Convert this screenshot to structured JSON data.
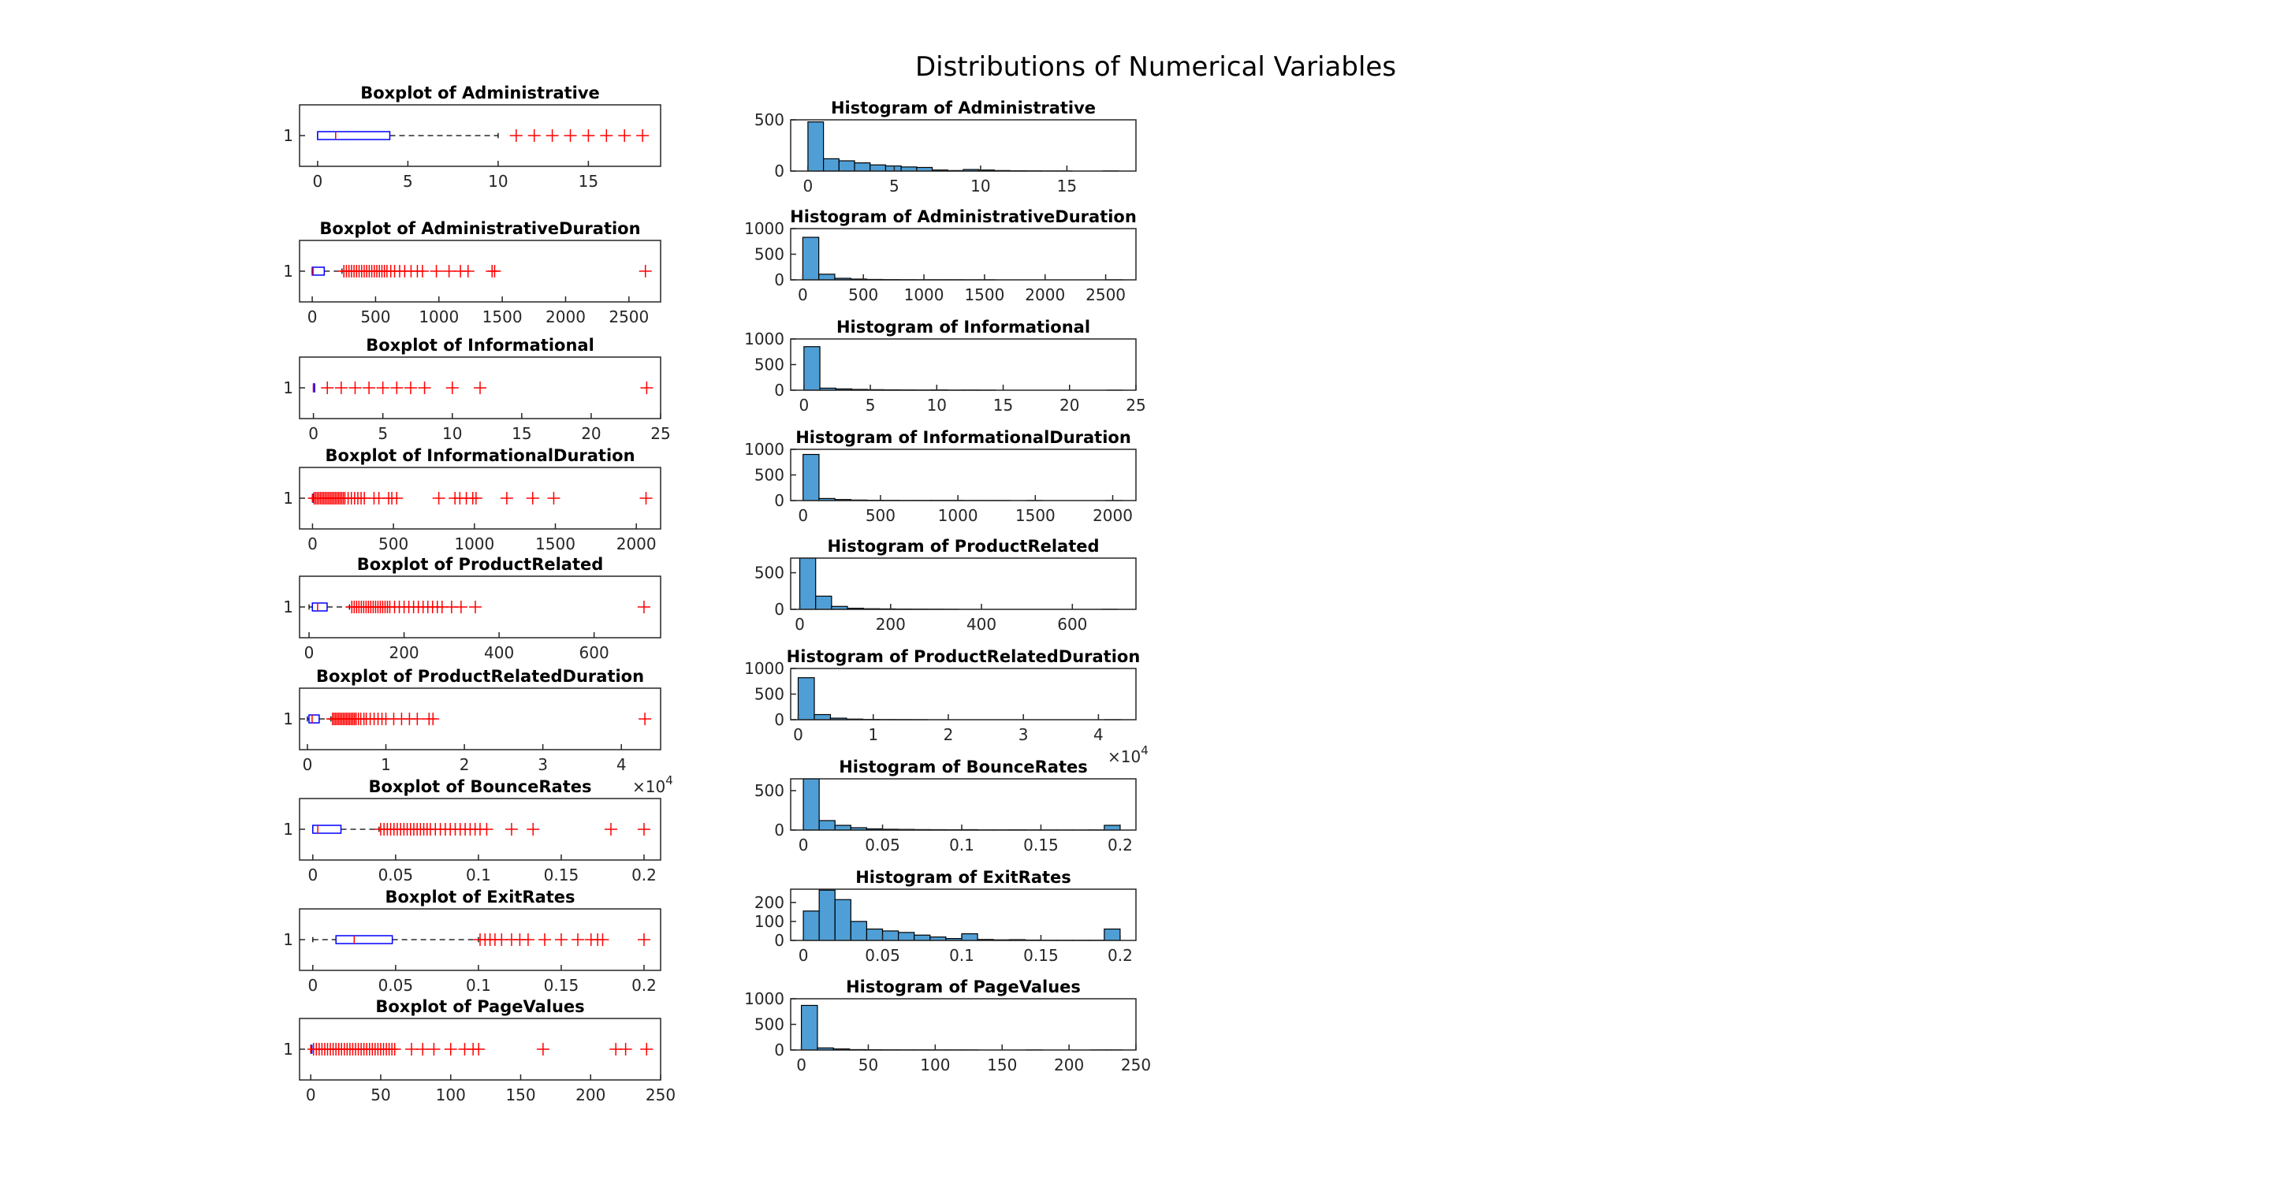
{
  "figure_title": "Distributions of Numerical Variables",
  "colors": {
    "box": "#0000ff",
    "outlier": "#ff0000",
    "hist_fill": "#4f9fd6",
    "hist_edge": "#000000",
    "axis": "#262626"
  },
  "chart_data": [
    {
      "type": "boxplot",
      "title": "Boxplot of Administrative",
      "ytick": "1",
      "xlim": [
        -1,
        19
      ],
      "xticks": [
        0,
        5,
        10,
        15
      ],
      "q1": 0,
      "median": 1,
      "q3": 4,
      "whisker_low": 0,
      "whisker_high": 10,
      "outliers": [
        11,
        12,
        13,
        14,
        15,
        16,
        17,
        18
      ]
    },
    {
      "type": "histogram",
      "title": "Histogram of Administrative",
      "xlim": [
        -1,
        19
      ],
      "ylim": [
        0,
        500
      ],
      "xticks": [
        0,
        5,
        10,
        15
      ],
      "yticks": [
        0,
        500
      ],
      "bin_edges": [
        0,
        0.9,
        1.8,
        2.7,
        3.6,
        4.5,
        5.4,
        6.3,
        7.2,
        8.1,
        9.0,
        9.9,
        10.8,
        11.7,
        12.6,
        13.5,
        14.4,
        15.3,
        16.2,
        17.1,
        18.0
      ],
      "counts": [
        480,
        120,
        100,
        80,
        60,
        50,
        40,
        35,
        10,
        5,
        15,
        10,
        5,
        3,
        2,
        1,
        1,
        0,
        0,
        1
      ]
    },
    {
      "type": "boxplot",
      "title": "Boxplot of AdministrativeDuration",
      "ytick": "1",
      "xlim": [
        -100,
        2750
      ],
      "xticks": [
        0,
        500,
        1000,
        1500,
        2000,
        2500
      ],
      "q1": 0,
      "median": 7,
      "q3": 95,
      "whisker_low": 0,
      "whisker_high": 235,
      "outliers": [
        250,
        270,
        290,
        310,
        330,
        350,
        370,
        390,
        410,
        430,
        450,
        470,
        490,
        510,
        530,
        550,
        570,
        590,
        620,
        650,
        690,
        730,
        780,
        830,
        870,
        980,
        1080,
        1170,
        1230,
        1420,
        1440,
        2630
      ]
    },
    {
      "type": "histogram",
      "title": "Histogram of AdministrativeDuration",
      "xlim": [
        -100,
        2750
      ],
      "ylim": [
        0,
        1000
      ],
      "xticks": [
        0,
        500,
        1000,
        1500,
        2000,
        2500
      ],
      "yticks": [
        0,
        500,
        1000
      ],
      "bin_edges": [
        0,
        132,
        264,
        396,
        528,
        660,
        792,
        924,
        1056,
        1188,
        1320,
        1452,
        1584,
        1716,
        1848,
        1980,
        2112,
        2244,
        2376,
        2508,
        2640
      ],
      "counts": [
        830,
        110,
        30,
        15,
        8,
        5,
        3,
        2,
        2,
        2,
        1,
        1,
        0,
        0,
        0,
        0,
        0,
        0,
        0,
        1
      ]
    },
    {
      "type": "boxplot",
      "title": "Boxplot of Informational",
      "ytick": "1",
      "xlim": [
        -1,
        25
      ],
      "xticks": [
        0,
        5,
        10,
        15,
        20,
        25
      ],
      "q1": 0,
      "median": 0,
      "q3": 0,
      "whisker_low": 0,
      "whisker_high": 0,
      "outliers": [
        1,
        2,
        3,
        4,
        5,
        6,
        7,
        8,
        10,
        12,
        24
      ]
    },
    {
      "type": "histogram",
      "title": "Histogram of Informational",
      "xlim": [
        -1,
        25
      ],
      "ylim": [
        0,
        1000
      ],
      "xticks": [
        0,
        5,
        10,
        15,
        20,
        25
      ],
      "yticks": [
        0,
        500,
        1000
      ],
      "bin_edges": [
        0,
        1.2,
        2.4,
        3.6,
        4.8,
        6.0,
        7.2,
        8.4,
        9.6,
        10.8,
        12.0,
        13.2,
        14.4,
        15.6,
        16.8,
        18.0,
        19.2,
        20.4,
        21.6,
        22.8,
        24.0
      ],
      "counts": [
        850,
        40,
        25,
        15,
        10,
        8,
        6,
        4,
        6,
        2,
        3,
        2,
        0,
        0,
        0,
        0,
        0,
        0,
        0,
        1
      ]
    },
    {
      "type": "boxplot",
      "title": "Boxplot of InformationalDuration",
      "ytick": "1",
      "xlim": [
        -80,
        2150
      ],
      "xticks": [
        0,
        500,
        1000,
        1500,
        2000
      ],
      "q1": 0,
      "median": 0,
      "q3": 0,
      "whisker_low": 0,
      "whisker_high": 0,
      "outliers": [
        10,
        20,
        30,
        40,
        50,
        60,
        70,
        80,
        90,
        100,
        110,
        120,
        130,
        140,
        150,
        160,
        170,
        180,
        190,
        200,
        220,
        240,
        260,
        280,
        300,
        320,
        380,
        410,
        470,
        490,
        520,
        780,
        880,
        910,
        950,
        990,
        1010,
        1200,
        1360,
        1490,
        2060
      ]
    },
    {
      "type": "histogram",
      "title": "Histogram of InformationalDuration",
      "xlim": [
        -80,
        2150
      ],
      "ylim": [
        0,
        1000
      ],
      "xticks": [
        0,
        500,
        1000,
        1500,
        2000
      ],
      "yticks": [
        0,
        500,
        1000
      ],
      "bin_edges": [
        0,
        103,
        206,
        309,
        412,
        515,
        618,
        721,
        824,
        927,
        1030,
        1133,
        1236,
        1339,
        1442,
        1545,
        1648,
        1751,
        1854,
        1957,
        2060
      ],
      "counts": [
        900,
        40,
        20,
        10,
        6,
        4,
        2,
        2,
        3,
        3,
        1,
        1,
        1,
        0,
        1,
        0,
        0,
        0,
        0,
        1
      ]
    },
    {
      "type": "boxplot",
      "title": "Boxplot of ProductRelated",
      "ytick": "1",
      "xlim": [
        -20,
        740
      ],
      "xticks": [
        0,
        200,
        400,
        600
      ],
      "q1": 7,
      "median": 18,
      "q3": 38,
      "whisker_low": 0,
      "whisker_high": 85,
      "outliers": [
        90,
        95,
        100,
        105,
        110,
        115,
        120,
        125,
        130,
        135,
        140,
        145,
        150,
        155,
        160,
        165,
        170,
        180,
        190,
        200,
        210,
        220,
        230,
        240,
        250,
        260,
        270,
        280,
        300,
        320,
        350,
        705
      ]
    },
    {
      "type": "histogram",
      "title": "Histogram of ProductRelated",
      "xlim": [
        -20,
        740
      ],
      "ylim": [
        0,
        700
      ],
      "xticks": [
        0,
        200,
        400,
        600
      ],
      "yticks": [
        0,
        500
      ],
      "bin_edges": [
        0,
        35,
        70,
        105,
        140,
        175,
        210,
        245,
        280,
        315,
        350,
        385,
        420,
        455,
        490,
        525,
        560,
        595,
        630,
        665,
        700
      ],
      "counts": [
        700,
        180,
        40,
        15,
        8,
        6,
        4,
        3,
        2,
        1,
        0,
        0,
        0,
        0,
        0,
        0,
        0,
        0,
        0,
        1
      ]
    },
    {
      "type": "boxplot",
      "title": "Boxplot of ProductRelatedDuration",
      "ytick": "1",
      "xexponent": "4",
      "xlim": [
        -0.1,
        4.5
      ],
      "xticks": [
        0,
        1,
        2,
        3,
        4
      ],
      "q1": 0.02,
      "median": 0.06,
      "q3": 0.15,
      "whisker_low": 0,
      "whisker_high": 0.3,
      "outliers": [
        0.32,
        0.34,
        0.36,
        0.38,
        0.4,
        0.42,
        0.44,
        0.46,
        0.48,
        0.5,
        0.52,
        0.54,
        0.56,
        0.58,
        0.6,
        0.62,
        0.65,
        0.68,
        0.72,
        0.75,
        0.8,
        0.85,
        0.9,
        0.95,
        1.0,
        1.1,
        1.2,
        1.3,
        1.4,
        1.55,
        1.6,
        4.3
      ]
    },
    {
      "type": "histogram",
      "title": "Histogram of ProductRelatedDuration",
      "xexponent": "4",
      "xlim": [
        -0.1,
        4.5
      ],
      "ylim": [
        0,
        1000
      ],
      "xticks": [
        0,
        1,
        2,
        3,
        4
      ],
      "yticks": [
        0,
        500,
        1000
      ],
      "bin_edges": [
        0,
        0.215,
        0.43,
        0.645,
        0.86,
        1.075,
        1.29,
        1.505,
        1.72,
        1.935,
        2.15,
        2.365,
        2.58,
        2.795,
        3.01,
        3.225,
        3.44,
        3.655,
        3.87,
        4.085,
        4.3
      ],
      "counts": [
        820,
        100,
        30,
        12,
        5,
        3,
        2,
        1,
        0,
        0,
        0,
        0,
        0,
        0,
        0,
        0,
        0,
        0,
        0,
        1
      ]
    },
    {
      "type": "boxplot",
      "title": "Boxplot of BounceRates",
      "ytick": "1",
      "xlim": [
        -0.008,
        0.21
      ],
      "xticks": [
        0,
        0.05,
        0.1,
        0.15,
        0.2
      ],
      "q1": 0,
      "median": 0.003,
      "q3": 0.017,
      "whisker_low": 0,
      "whisker_high": 0.04,
      "outliers": [
        0.041,
        0.043,
        0.045,
        0.047,
        0.049,
        0.051,
        0.053,
        0.055,
        0.057,
        0.059,
        0.061,
        0.063,
        0.065,
        0.067,
        0.069,
        0.071,
        0.074,
        0.077,
        0.08,
        0.083,
        0.086,
        0.089,
        0.092,
        0.095,
        0.098,
        0.101,
        0.105,
        0.12,
        0.133,
        0.18,
        0.2
      ]
    },
    {
      "type": "histogram",
      "title": "Histogram of BounceRates",
      "xlim": [
        -0.008,
        0.21
      ],
      "ylim": [
        0,
        650
      ],
      "xticks": [
        0,
        0.05,
        0.1,
        0.15,
        0.2
      ],
      "yticks": [
        0,
        500
      ],
      "bin_edges": [
        0,
        0.01,
        0.02,
        0.03,
        0.04,
        0.05,
        0.06,
        0.07,
        0.08,
        0.09,
        0.1,
        0.11,
        0.12,
        0.13,
        0.14,
        0.15,
        0.16,
        0.17,
        0.18,
        0.19,
        0.2
      ],
      "counts": [
        650,
        120,
        60,
        30,
        15,
        10,
        8,
        6,
        5,
        4,
        5,
        2,
        2,
        3,
        2,
        1,
        1,
        1,
        2,
        60
      ]
    },
    {
      "type": "boxplot",
      "title": "Boxplot of ExitRates",
      "ytick": "1",
      "xlim": [
        -0.008,
        0.21
      ],
      "xticks": [
        0,
        0.05,
        0.1,
        0.15,
        0.2
      ],
      "q1": 0.014,
      "median": 0.025,
      "q3": 0.048,
      "whisker_low": 0,
      "whisker_high": 0.1,
      "outliers": [
        0.101,
        0.104,
        0.107,
        0.11,
        0.114,
        0.12,
        0.125,
        0.13,
        0.14,
        0.15,
        0.16,
        0.168,
        0.172,
        0.175,
        0.2
      ]
    },
    {
      "type": "histogram",
      "title": "Histogram of ExitRates",
      "xlim": [
        -0.008,
        0.21
      ],
      "ylim": [
        0,
        270
      ],
      "xticks": [
        0,
        0.05,
        0.1,
        0.15,
        0.2
      ],
      "yticks": [
        0,
        100,
        200
      ],
      "bin_edges": [
        0,
        0.01,
        0.02,
        0.03,
        0.04,
        0.05,
        0.06,
        0.07,
        0.08,
        0.09,
        0.1,
        0.11,
        0.12,
        0.13,
        0.14,
        0.15,
        0.16,
        0.17,
        0.18,
        0.19,
        0.2
      ],
      "counts": [
        155,
        265,
        215,
        100,
        60,
        50,
        42,
        28,
        18,
        10,
        35,
        5,
        3,
        4,
        2,
        1,
        1,
        1,
        1,
        60
      ]
    },
    {
      "type": "boxplot",
      "title": "Boxplot of PageValues",
      "ytick": "1",
      "xlim": [
        -8,
        250
      ],
      "xticks": [
        0,
        50,
        100,
        150,
        200,
        250
      ],
      "q1": 0,
      "median": 0,
      "q3": 0,
      "whisker_low": 0,
      "whisker_high": 0,
      "outliers": [
        2,
        4,
        6,
        8,
        10,
        12,
        14,
        16,
        18,
        20,
        22,
        24,
        26,
        28,
        30,
        32,
        34,
        36,
        38,
        40,
        42,
        44,
        46,
        48,
        50,
        52,
        54,
        56,
        58,
        60,
        72,
        80,
        88,
        100,
        110,
        116,
        120,
        166,
        218,
        225,
        240
      ]
    },
    {
      "type": "histogram",
      "title": "Histogram of PageValues",
      "xlim": [
        -8,
        250
      ],
      "ylim": [
        0,
        1000
      ],
      "xticks": [
        0,
        50,
        100,
        150,
        200,
        250
      ],
      "yticks": [
        0,
        500,
        1000
      ],
      "bin_edges": [
        0,
        12,
        24,
        36,
        48,
        60,
        72,
        84,
        96,
        108,
        120,
        132,
        144,
        156,
        168,
        180,
        192,
        204,
        216,
        228,
        240
      ],
      "counts": [
        870,
        40,
        20,
        8,
        5,
        3,
        2,
        2,
        1,
        1,
        1,
        0,
        0,
        0,
        1,
        0,
        0,
        0,
        1,
        1
      ]
    }
  ]
}
